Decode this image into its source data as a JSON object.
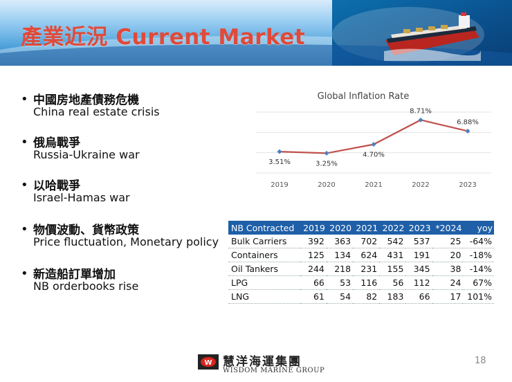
{
  "header": {
    "title": "產業近況 Current Market"
  },
  "bullets": [
    {
      "zh": "中國房地產債務危機",
      "en": "China real estate crisis"
    },
    {
      "zh": "俄烏戰爭",
      "en": "Russia-Ukraine war"
    },
    {
      "zh": "以哈戰爭",
      "en": "Israel-Hamas war"
    },
    {
      "zh": "物價波動、貨幣政策",
      "en": "Price fluctuation, Monetary policy"
    },
    {
      "zh": "新造船訂單增加",
      "en": "NB orderbooks rise"
    }
  ],
  "chart_data": {
    "type": "line",
    "title": "Global Inflation Rate",
    "categories": [
      "2019",
      "2020",
      "2021",
      "2022",
      "2023"
    ],
    "series": [
      {
        "values": [
          3.51,
          3.25,
          4.7,
          8.71,
          6.88
        ]
      }
    ],
    "data_labels": [
      "3.51%",
      "3.25%",
      "4.70%",
      "8.71%",
      "6.88%"
    ],
    "ylim": [
      0,
      10
    ],
    "grid": true,
    "colors": {
      "line": "#c0504d",
      "marker": "#4f81bd"
    }
  },
  "table": {
    "headers": [
      "NB Contracted",
      "2019",
      "2020",
      "2021",
      "2022",
      "2023",
      "*2024",
      "yoy"
    ],
    "rows": [
      [
        "Bulk Carriers",
        "392",
        "363",
        "702",
        "542",
        "537",
        "25",
        "-64%"
      ],
      [
        "Containers",
        "125",
        "134",
        "624",
        "431",
        "191",
        "20",
        "-18%"
      ],
      [
        "Oil Tankers",
        "244",
        "218",
        "231",
        "155",
        "345",
        "38",
        "-14%"
      ],
      [
        "LPG",
        "66",
        "53",
        "116",
        "56",
        "112",
        "24",
        "67%"
      ],
      [
        "LNG",
        "61",
        "54",
        "82",
        "183",
        "66",
        "17",
        "101%"
      ]
    ],
    "header_color": "#1f5fa8"
  },
  "footer": {
    "logo_mark": "W",
    "company_zh": "慧洋海運集團",
    "company_en": "WISDOM MARINE GROUP",
    "page_number": "18"
  }
}
